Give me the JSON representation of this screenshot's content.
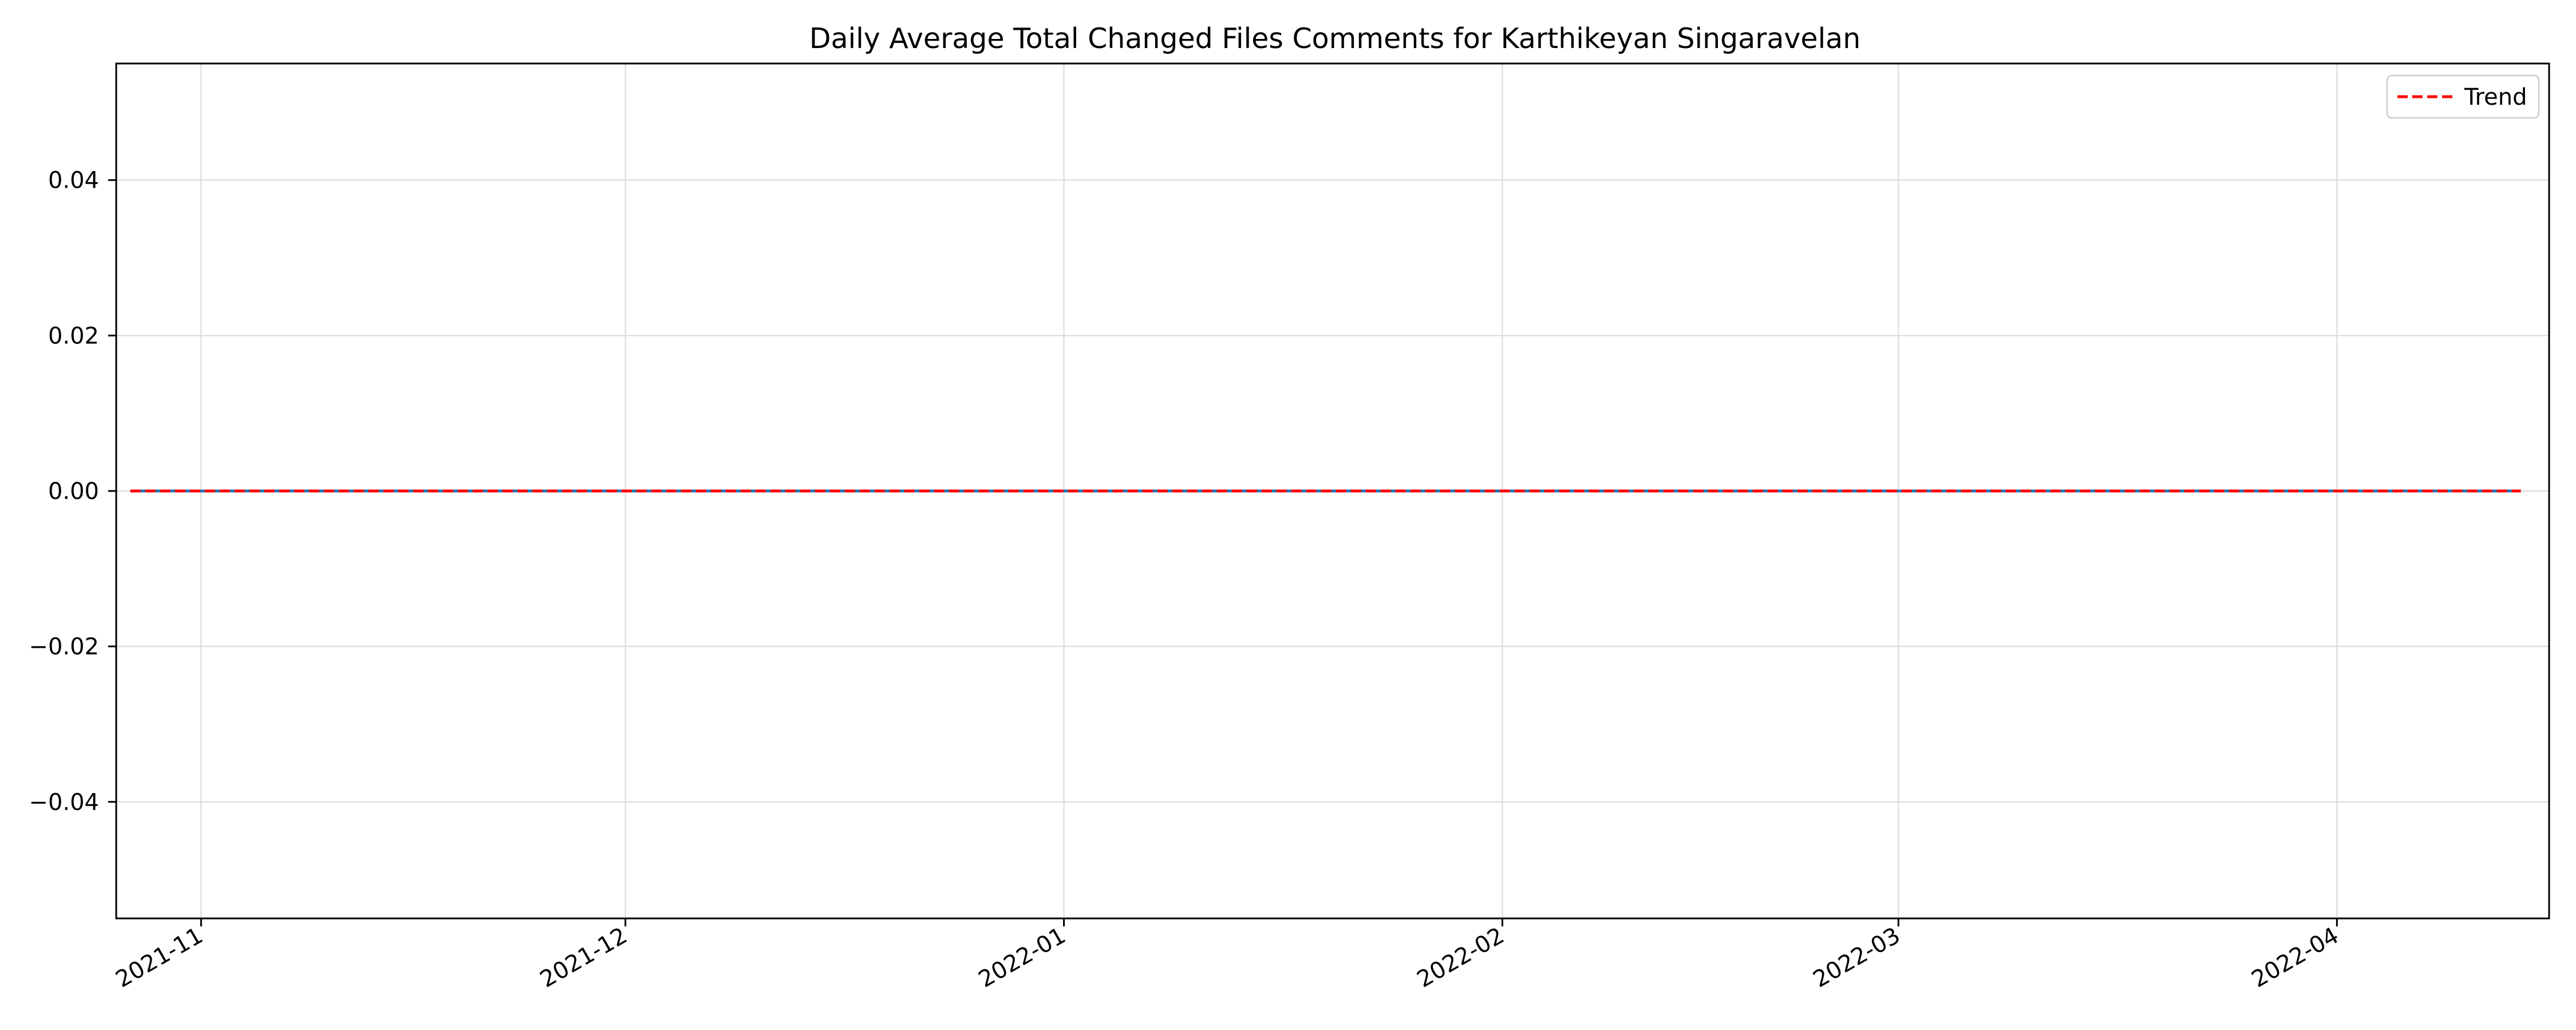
{
  "chart_data": {
    "type": "line",
    "title": "Daily Average Total Changed Files Comments for Karthikeyan Singaravelan",
    "xlabel": "",
    "ylabel": "",
    "x_range": [
      "2021-10-26",
      "2022-04-16"
    ],
    "ylim": [
      -0.055,
      0.055
    ],
    "x_ticks": [
      {
        "date": "2021-11-01",
        "label": "2021-11"
      },
      {
        "date": "2021-12-01",
        "label": "2021-12"
      },
      {
        "date": "2022-01-01",
        "label": "2022-01"
      },
      {
        "date": "2022-02-01",
        "label": "2022-02"
      },
      {
        "date": "2022-03-01",
        "label": "2022-03"
      },
      {
        "date": "2022-04-01",
        "label": "2022-04"
      }
    ],
    "y_ticks": [
      {
        "value": 0.04,
        "label": "0.04"
      },
      {
        "value": 0.02,
        "label": "0.02"
      },
      {
        "value": 0.0,
        "label": "0.00"
      },
      {
        "value": -0.02,
        "label": "−0.02"
      },
      {
        "value": -0.04,
        "label": "−0.04"
      }
    ],
    "grid": true,
    "legend_position": "top-right",
    "series": [
      {
        "x": [
          "2021-10-27",
          "2022-04-14"
        ],
        "y": [
          0,
          0
        ],
        "color": "#1f77b4",
        "style": "solid"
      },
      {
        "name": "Trend",
        "x": [
          "2021-10-27",
          "2022-04-14"
        ],
        "y": [
          0,
          0
        ],
        "color": "#ff0000",
        "style": "dashed"
      }
    ]
  }
}
